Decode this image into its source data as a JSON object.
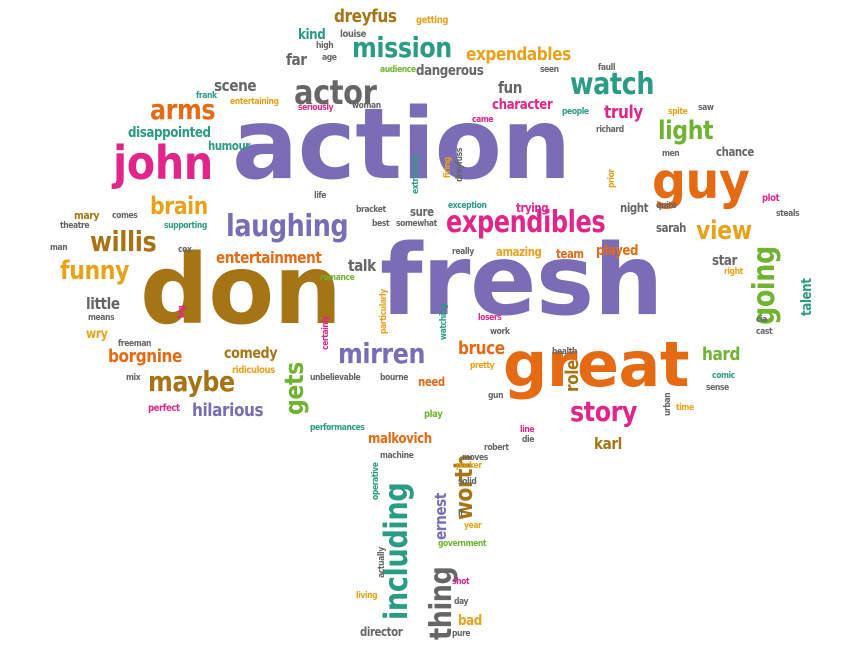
{
  "colors": {
    "purple": "#7b6db5",
    "magenta": "#e0268a",
    "orange": "#e56a14",
    "gold": "#e8a21a",
    "green": "#6fb330",
    "teal": "#2a9b84",
    "brown": "#a57414",
    "gray": "#666666"
  },
  "words": [
    {
      "text": "action",
      "color": "purple"
    },
    {
      "text": "fresh",
      "color": "purple"
    },
    {
      "text": "don",
      "color": "brown"
    },
    {
      "text": "great",
      "color": "orange"
    },
    {
      "text": "john",
      "color": "magenta"
    },
    {
      "text": "guy",
      "color": "orange"
    },
    {
      "text": "expendibles",
      "color": "magenta"
    },
    {
      "text": "laughing",
      "color": "purple"
    },
    {
      "text": "mission",
      "color": "teal"
    },
    {
      "text": "actor",
      "color": "gray"
    },
    {
      "text": "watch",
      "color": "teal"
    },
    {
      "text": "mirren",
      "color": "purple"
    },
    {
      "text": "story",
      "color": "magenta"
    },
    {
      "text": "maybe",
      "color": "brown"
    },
    {
      "text": "willis",
      "color": "brown"
    },
    {
      "text": "funny",
      "color": "gold"
    },
    {
      "text": "arms",
      "color": "orange"
    },
    {
      "text": "brain",
      "color": "gold"
    },
    {
      "text": "light",
      "color": "green"
    },
    {
      "text": "view",
      "color": "gold"
    },
    {
      "text": "going",
      "color": "green"
    },
    {
      "text": "gets",
      "color": "green"
    },
    {
      "text": "including",
      "color": "teal"
    },
    {
      "text": "thing",
      "color": "gray"
    },
    {
      "text": "worth",
      "color": "brown"
    },
    {
      "text": "expendables",
      "color": "gold"
    },
    {
      "text": "dreyfus",
      "color": "brown"
    },
    {
      "text": "entertainment",
      "color": "orange"
    },
    {
      "text": "borgnine",
      "color": "orange"
    },
    {
      "text": "hilarious",
      "color": "purple"
    },
    {
      "text": "comedy",
      "color": "brown"
    },
    {
      "text": "bruce",
      "color": "orange"
    },
    {
      "text": "hard",
      "color": "green"
    },
    {
      "text": "truly",
      "color": "magenta"
    },
    {
      "text": "fun",
      "color": "gray"
    },
    {
      "text": "scene",
      "color": "gray"
    },
    {
      "text": "dangerous",
      "color": "gray"
    },
    {
      "text": "talk",
      "color": "gray"
    },
    {
      "text": "little",
      "color": "gray"
    },
    {
      "text": "role",
      "color": "brown"
    },
    {
      "text": "karl",
      "color": "brown"
    },
    {
      "text": "malkovich",
      "color": "orange"
    },
    {
      "text": "ernest",
      "color": "purple"
    },
    {
      "text": "played",
      "color": "orange"
    },
    {
      "text": "disappointed",
      "color": "teal"
    },
    {
      "text": "humour",
      "color": "teal"
    },
    {
      "text": "kind",
      "color": "teal"
    },
    {
      "text": "far",
      "color": "gray"
    },
    {
      "text": "character",
      "color": "magenta"
    },
    {
      "text": "star",
      "color": "gray"
    },
    {
      "text": "talent",
      "color": "teal"
    },
    {
      "text": "chance",
      "color": "gray"
    },
    {
      "text": "team",
      "color": "orange"
    },
    {
      "text": "amazing",
      "color": "gold"
    },
    {
      "text": "trying",
      "color": "magenta"
    },
    {
      "text": "sure",
      "color": "gray"
    },
    {
      "text": "night",
      "color": "gray"
    },
    {
      "text": "sarah",
      "color": "gray"
    },
    {
      "text": "director",
      "color": "gray"
    },
    {
      "text": "bad",
      "color": "gold"
    },
    {
      "text": "need",
      "color": "orange"
    },
    {
      "text": "getting",
      "color": "gold"
    },
    {
      "text": "louise",
      "color": "gray"
    },
    {
      "text": "high",
      "color": "gray"
    },
    {
      "text": "age",
      "color": "gray"
    },
    {
      "text": "audience",
      "color": "green"
    },
    {
      "text": "faull",
      "color": "gray"
    },
    {
      "text": "seen",
      "color": "gray"
    },
    {
      "text": "frank",
      "color": "teal"
    },
    {
      "text": "entertaining",
      "color": "gold"
    },
    {
      "text": "seriously",
      "color": "magenta"
    },
    {
      "text": "woman",
      "color": "gray"
    },
    {
      "text": "came",
      "color": "magenta"
    },
    {
      "text": "people",
      "color": "teal"
    },
    {
      "text": "spite",
      "color": "gold"
    },
    {
      "text": "saw",
      "color": "gray"
    },
    {
      "text": "richard",
      "color": "gray"
    },
    {
      "text": "men",
      "color": "gray"
    },
    {
      "text": "mary",
      "color": "brown"
    },
    {
      "text": "comes",
      "color": "gray"
    },
    {
      "text": "theatre",
      "color": "gray"
    },
    {
      "text": "supporting",
      "color": "teal"
    },
    {
      "text": "man",
      "color": "gray"
    },
    {
      "text": "cox",
      "color": "gray"
    },
    {
      "text": "life",
      "color": "gray"
    },
    {
      "text": "extremely",
      "color": "teal"
    },
    {
      "text": "bracket",
      "color": "gray"
    },
    {
      "text": "firing",
      "color": "gold"
    },
    {
      "text": "dreyfuss",
      "color": "gray"
    },
    {
      "text": "best",
      "color": "gray"
    },
    {
      "text": "somewhat",
      "color": "gray"
    },
    {
      "text": "exception",
      "color": "teal"
    },
    {
      "text": "prior",
      "color": "gold"
    },
    {
      "text": "quite",
      "color": "gray"
    },
    {
      "text": "plot",
      "color": "magenta"
    },
    {
      "text": "steals",
      "color": "gray"
    },
    {
      "text": "right",
      "color": "gold"
    },
    {
      "text": "really",
      "color": "gray"
    },
    {
      "text": "romance",
      "color": "green"
    },
    {
      "text": "big",
      "color": "magenta"
    },
    {
      "text": "means",
      "color": "gray"
    },
    {
      "text": "wry",
      "color": "gold"
    },
    {
      "text": "freeman",
      "color": "gray"
    },
    {
      "text": "mix",
      "color": "gray"
    },
    {
      "text": "certainly",
      "color": "magenta"
    },
    {
      "text": "particularly",
      "color": "gold"
    },
    {
      "text": "watching",
      "color": "teal"
    },
    {
      "text": "losers",
      "color": "magenta"
    },
    {
      "text": "work",
      "color": "gray"
    },
    {
      "text": "pretty",
      "color": "gold"
    },
    {
      "text": "cia",
      "color": "gray"
    },
    {
      "text": "cast",
      "color": "gray"
    },
    {
      "text": "health",
      "color": "gray"
    },
    {
      "text": "comic",
      "color": "teal"
    },
    {
      "text": "sense",
      "color": "gray"
    },
    {
      "text": "ridiculous",
      "color": "gold"
    },
    {
      "text": "unbelievable",
      "color": "gray"
    },
    {
      "text": "bourne",
      "color": "gray"
    },
    {
      "text": "gun",
      "color": "gray"
    },
    {
      "text": "time",
      "color": "gold"
    },
    {
      "text": "urban",
      "color": "gray"
    },
    {
      "text": "perfect",
      "color": "magenta"
    },
    {
      "text": "play",
      "color": "green"
    },
    {
      "text": "performances",
      "color": "teal"
    },
    {
      "text": "line",
      "color": "magenta"
    },
    {
      "text": "die",
      "color": "gray"
    },
    {
      "text": "robert",
      "color": "gray"
    },
    {
      "text": "machine",
      "color": "gray"
    },
    {
      "text": "moves",
      "color": "gray"
    },
    {
      "text": "parker",
      "color": "gold"
    },
    {
      "text": "solid",
      "color": "gray"
    },
    {
      "text": "ll",
      "color": "gray"
    },
    {
      "text": "year",
      "color": "gold"
    },
    {
      "text": "government",
      "color": "green"
    },
    {
      "text": "operative",
      "color": "teal"
    },
    {
      "text": "actually",
      "color": "gray"
    },
    {
      "text": "shot",
      "color": "magenta"
    },
    {
      "text": "living",
      "color": "gold"
    },
    {
      "text": "day",
      "color": "gray"
    },
    {
      "text": "pure",
      "color": "gray"
    }
  ]
}
